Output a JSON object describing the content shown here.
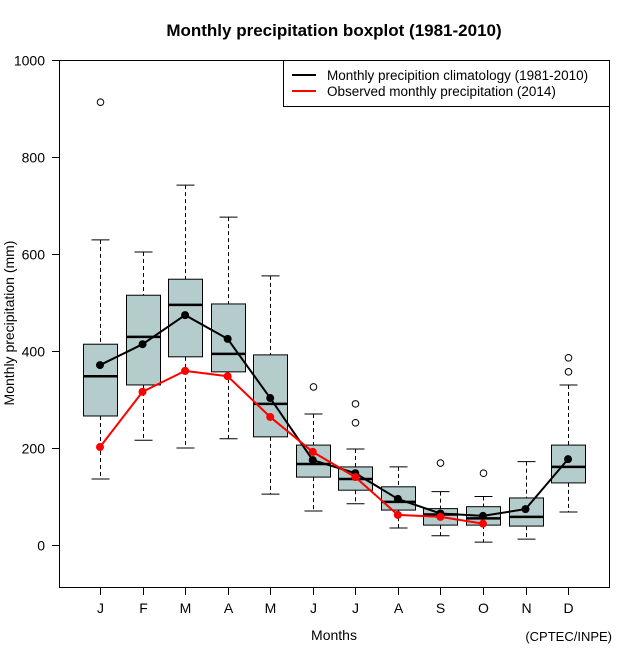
{
  "chart_data": {
    "type": "boxplot",
    "title": "Monthly precipitation boxplot (1981-2010)",
    "xlabel": "Months",
    "ylabel": "Monthly precipitation (mm)",
    "credit": "(CPTEC/INPE)",
    "ylim": [
      -87,
      1000
    ],
    "yticks": [
      0,
      200,
      400,
      600,
      800,
      1000
    ],
    "categories": [
      "J",
      "F",
      "M",
      "A",
      "M",
      "J",
      "J",
      "A",
      "S",
      "O",
      "N",
      "D"
    ],
    "box_fill": "#B4CCCC",
    "boxes": [
      {
        "whisker_low": 136,
        "q1": 266,
        "median": 348,
        "q3": 414,
        "whisker_high": 629,
        "outliers": [
          913
        ]
      },
      {
        "whisker_low": 216,
        "q1": 330,
        "median": 429,
        "q3": 515,
        "whisker_high": 604,
        "outliers": []
      },
      {
        "whisker_low": 200,
        "q1": 388,
        "median": 495,
        "q3": 548,
        "whisker_high": 742,
        "outliers": []
      },
      {
        "whisker_low": 219,
        "q1": 357,
        "median": 394,
        "q3": 497,
        "whisker_high": 676,
        "outliers": []
      },
      {
        "whisker_low": 105,
        "q1": 223,
        "median": 291,
        "q3": 392,
        "whisker_high": 555,
        "outliers": []
      },
      {
        "whisker_low": 70,
        "q1": 140,
        "median": 167,
        "q3": 206,
        "whisker_high": 270,
        "outliers": [
          326
        ]
      },
      {
        "whisker_low": 85,
        "q1": 113,
        "median": 136,
        "q3": 161,
        "whisker_high": 198,
        "outliers": [
          291,
          252
        ]
      },
      {
        "whisker_low": 35,
        "q1": 72,
        "median": 89,
        "q3": 120,
        "whisker_high": 161,
        "outliers": []
      },
      {
        "whisker_low": 19,
        "q1": 41,
        "median": 63,
        "q3": 75,
        "whisker_high": 110,
        "outliers": [
          169
        ]
      },
      {
        "whisker_low": 6,
        "q1": 41,
        "median": 55,
        "q3": 79,
        "whisker_high": 100,
        "outliers": [
          148
        ]
      },
      {
        "whisker_low": 12,
        "q1": 39,
        "median": 58,
        "q3": 97,
        "whisker_high": 172,
        "outliers": []
      },
      {
        "whisker_low": 68,
        "q1": 128,
        "median": 161,
        "q3": 206,
        "whisker_high": 330,
        "outliers": [
          386,
          357
        ]
      }
    ],
    "series": [
      {
        "name": "Monthly precipition climatology (1981-2010)",
        "color": "#000000",
        "values": [
          371,
          414,
          474,
          425,
          303,
          175,
          148,
          95,
          65,
          60,
          74,
          177
        ]
      },
      {
        "name": "Observed monthly precipitation (2014)",
        "color": "#FF0000",
        "values": [
          202,
          316,
          359,
          348,
          264,
          192,
          140,
          62,
          58,
          44,
          null,
          null
        ]
      }
    ],
    "legend_position": "top-right",
    "grid": false
  }
}
